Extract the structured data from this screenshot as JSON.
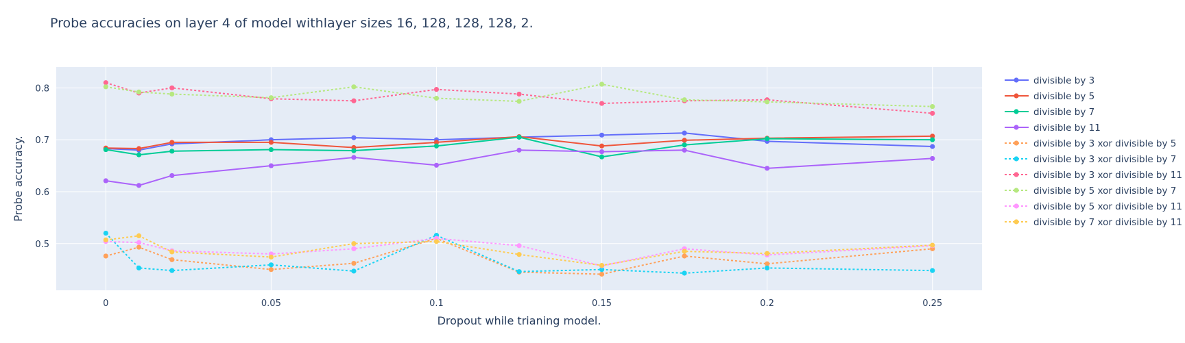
{
  "chart_data": {
    "type": "line",
    "title": "Probe accuracies on layer 4 of model withlayer sizes 16, 128, 128, 128, 2.",
    "xlabel": "Dropout while trianing model.",
    "ylabel": "Probe accuracy.",
    "xlim": [
      -0.015,
      0.265
    ],
    "ylim": [
      0.41,
      0.84
    ],
    "xticks": [
      0,
      0.05,
      0.1,
      0.15,
      0.2,
      0.25
    ],
    "xtick_labels": [
      "0",
      "0.05",
      "0.1",
      "0.15",
      "0.2",
      "0.25"
    ],
    "yticks": [
      0.5,
      0.6,
      0.7,
      0.8
    ],
    "ytick_labels": [
      "0.5",
      "0.6",
      "0.7",
      "0.8"
    ],
    "grid": true,
    "legend_position": "right",
    "background": "#e5ecf6",
    "x": [
      0,
      0.01,
      0.02,
      0.05,
      0.075,
      0.1,
      0.125,
      0.15,
      0.175,
      0.2,
      0.25
    ],
    "series": [
      {
        "name": "divisible by 3",
        "color": "#636efa",
        "dash": "solid",
        "values": [
          0.683,
          0.68,
          0.692,
          0.7,
          0.704,
          0.7,
          0.705,
          0.709,
          0.713,
          0.697,
          0.687
        ]
      },
      {
        "name": "divisible by 5",
        "color": "#ef553b",
        "dash": "solid",
        "values": [
          0.684,
          0.683,
          0.695,
          0.695,
          0.685,
          0.695,
          0.706,
          0.688,
          0.699,
          0.703,
          0.707
        ]
      },
      {
        "name": "divisible by 7",
        "color": "#00cc96",
        "dash": "solid",
        "values": [
          0.681,
          0.671,
          0.678,
          0.681,
          0.679,
          0.688,
          0.705,
          0.667,
          0.69,
          0.702,
          0.7
        ]
      },
      {
        "name": "divisible by 11",
        "color": "#ab63fa",
        "dash": "solid",
        "values": [
          0.621,
          0.612,
          0.631,
          0.65,
          0.666,
          0.651,
          0.68,
          0.677,
          0.68,
          0.645,
          0.664
        ]
      },
      {
        "name": "divisible by 3 xor divisible by 5",
        "color": "#ffa15a",
        "dash": "dot",
        "values": [
          0.476,
          0.493,
          0.469,
          0.45,
          0.462,
          0.51,
          0.445,
          0.441,
          0.476,
          0.461,
          0.49
        ]
      },
      {
        "name": "divisible by 3 xor divisible by 7",
        "color": "#19d3f3",
        "dash": "dot",
        "values": [
          0.52,
          0.453,
          0.448,
          0.459,
          0.447,
          0.516,
          0.446,
          0.45,
          0.443,
          0.453,
          0.448
        ]
      },
      {
        "name": "divisible by 3 xor divisible by 11",
        "color": "#ff6692",
        "dash": "dot",
        "values": [
          0.81,
          0.79,
          0.8,
          0.779,
          0.775,
          0.797,
          0.788,
          0.77,
          0.775,
          0.777,
          0.751
        ]
      },
      {
        "name": "divisible by 5 xor divisible by 7",
        "color": "#b6e880",
        "dash": "dot",
        "values": [
          0.802,
          0.792,
          0.788,
          0.781,
          0.802,
          0.78,
          0.774,
          0.807,
          0.777,
          0.773,
          0.764
        ]
      },
      {
        "name": "divisible by 5 xor divisible by 11",
        "color": "#ff97ff",
        "dash": "dot",
        "values": [
          0.504,
          0.502,
          0.486,
          0.48,
          0.49,
          0.51,
          0.496,
          0.457,
          0.49,
          0.478,
          0.496
        ]
      },
      {
        "name": "divisible by 7 xor divisible by 11",
        "color": "#fecb52",
        "dash": "dot",
        "values": [
          0.507,
          0.515,
          0.484,
          0.474,
          0.5,
          0.504,
          0.479,
          0.458,
          0.485,
          0.481,
          0.497
        ]
      }
    ]
  }
}
